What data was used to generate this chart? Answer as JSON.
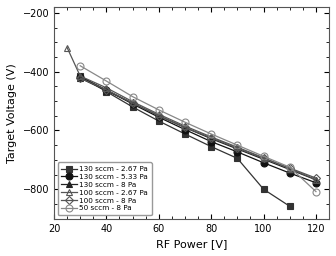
{
  "title": "",
  "xlabel": "RF Power [V]",
  "ylabel": "Target Voltage (V)",
  "xlim": [
    20,
    125
  ],
  "ylim": [
    -900,
    -180
  ],
  "yticks": [
    -800,
    -600,
    -400,
    -200
  ],
  "xticks": [
    20,
    40,
    60,
    80,
    100,
    120
  ],
  "background_color": "#ffffff",
  "series": [
    {
      "label": "130 sccm - 2.67 Pa",
      "x": [
        30,
        40,
        50,
        60,
        70,
        80,
        90,
        100,
        110
      ],
      "y": [
        -415,
        -468,
        -520,
        -568,
        -612,
        -655,
        -695,
        -800,
        -858
      ],
      "marker": "s",
      "color": "#333333",
      "markersize": 4,
      "fillstyle": "full",
      "linestyle": "-"
    },
    {
      "label": "130 sccm - 5.33 Pa",
      "x": [
        30,
        40,
        50,
        60,
        70,
        80,
        90,
        100,
        110,
        120
      ],
      "y": [
        -418,
        -462,
        -510,
        -555,
        -597,
        -638,
        -673,
        -710,
        -745,
        -778
      ],
      "marker": "o",
      "color": "#111111",
      "markersize": 5,
      "fillstyle": "full",
      "linestyle": "-"
    },
    {
      "label": "130 sccm - 8 Pa",
      "x": [
        30,
        40,
        50,
        60,
        70,
        80,
        90,
        100,
        110,
        120
      ],
      "y": [
        -422,
        -465,
        -507,
        -550,
        -590,
        -628,
        -663,
        -698,
        -733,
        -768
      ],
      "marker": "^",
      "color": "#222222",
      "markersize": 4,
      "fillstyle": "full",
      "linestyle": "-"
    },
    {
      "label": "100 sccm - 2.67 Pa",
      "x": [
        25,
        30,
        40,
        50,
        60,
        70,
        80,
        90,
        100,
        110,
        120
      ],
      "y": [
        -318,
        -415,
        -455,
        -502,
        -545,
        -585,
        -622,
        -657,
        -693,
        -730,
        -767
      ],
      "marker": "^",
      "color": "#555555",
      "markersize": 5,
      "fillstyle": "none",
      "linestyle": "-"
    },
    {
      "label": "100 sccm - 8 Pa",
      "x": [
        30,
        40,
        50,
        60,
        70,
        80,
        90,
        100,
        110,
        120
      ],
      "y": [
        -422,
        -462,
        -507,
        -550,
        -590,
        -625,
        -660,
        -695,
        -728,
        -762
      ],
      "marker": "D",
      "color": "#555555",
      "markersize": 4,
      "fillstyle": "none",
      "linestyle": "-"
    },
    {
      "label": "50 sccm - 8 Pa",
      "x": [
        30,
        40,
        50,
        60,
        70,
        80,
        90,
        100,
        110,
        120
      ],
      "y": [
        -380,
        -432,
        -485,
        -530,
        -572,
        -612,
        -650,
        -688,
        -725,
        -808
      ],
      "marker": "o",
      "color": "#888888",
      "markersize": 5,
      "fillstyle": "none",
      "linestyle": "-"
    }
  ]
}
